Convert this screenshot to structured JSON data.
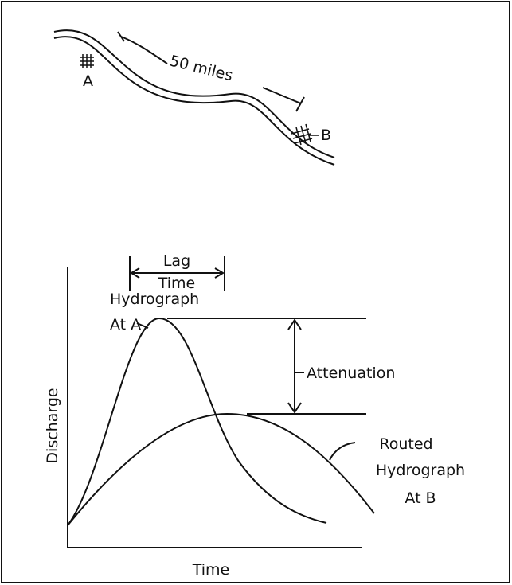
{
  "map": {
    "distance": "50 miles",
    "town_a": "A",
    "town_b": "B"
  },
  "lag": {
    "line1": "Lag",
    "line2": "Time"
  },
  "labels": {
    "hydrograph_a": [
      "Hydrograph",
      "At A"
    ],
    "attenuation": "Attenuation",
    "hydrograph_b": [
      "Routed",
      "Hydrograph",
      "At B"
    ]
  },
  "axes": {
    "y": "Discharge",
    "x": "Time"
  }
}
